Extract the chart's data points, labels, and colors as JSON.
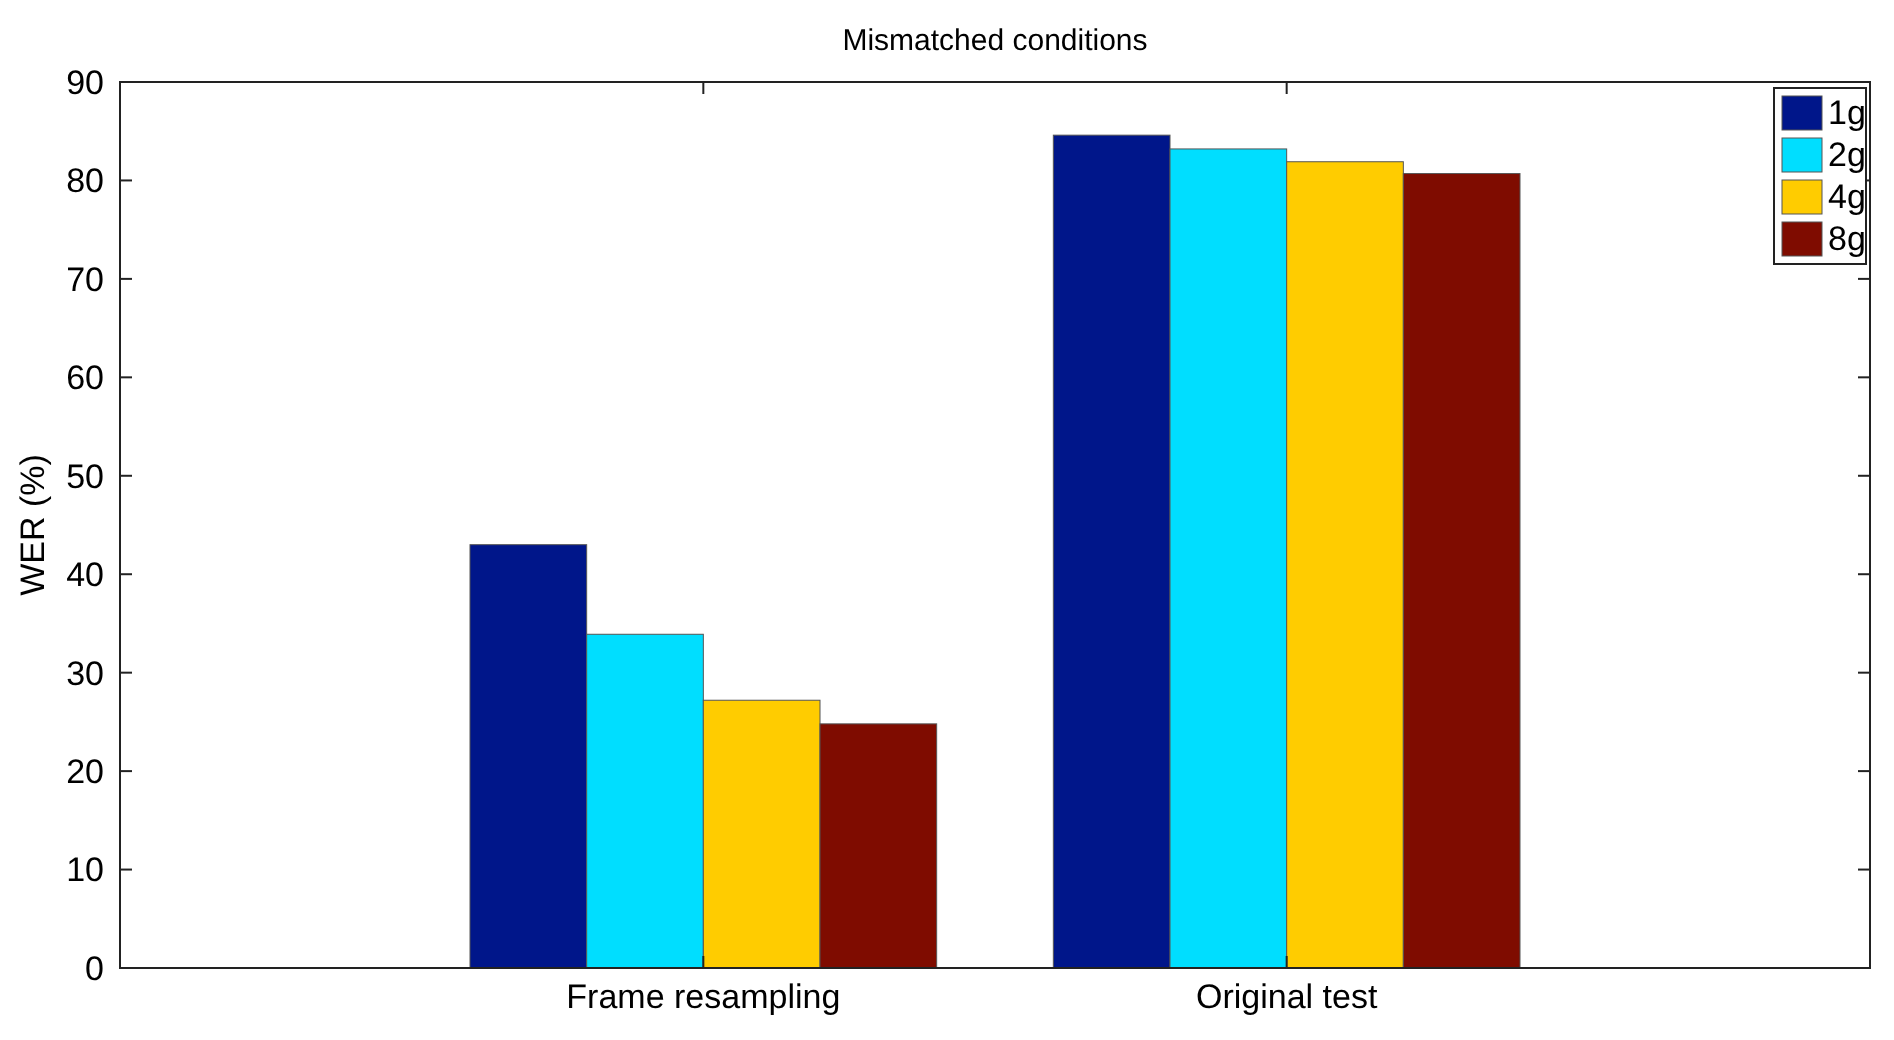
{
  "chart_data": {
    "type": "bar",
    "title": "Mismatched conditions",
    "ylabel": "WER (%)",
    "categories": [
      "Frame resampling",
      "Original test"
    ],
    "series": [
      {
        "name": "1g",
        "color": "#00168a",
        "values": [
          43.0,
          84.6
        ]
      },
      {
        "name": "2g",
        "color": "#00deff",
        "values": [
          33.9,
          83.2
        ]
      },
      {
        "name": "4g",
        "color": "#ffcc00",
        "values": [
          27.2,
          81.9
        ]
      },
      {
        "name": "8g",
        "color": "#7f0c00",
        "values": [
          24.8,
          80.7
        ]
      }
    ],
    "ylim": [
      0,
      90
    ],
    "yticks": [
      0,
      10,
      20,
      30,
      40,
      50,
      60,
      70,
      80,
      90
    ],
    "grid": false,
    "legend": "top right"
  }
}
